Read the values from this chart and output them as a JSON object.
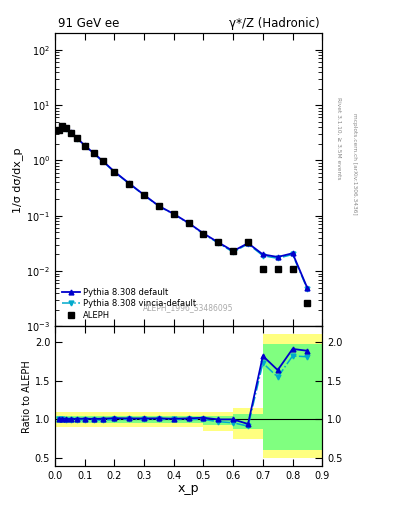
{
  "title_left": "91 GeV ee",
  "title_right": "γ*/Z (Hadronic)",
  "ylabel_main": "1/σ dσ/dx_p",
  "ylabel_ratio": "Ratio to ALEPH",
  "xlabel": "x_p",
  "right_label_top": "Rivet 3.1.10, ≥ 3.5M events",
  "right_label_bottom": "mcplots.cern.ch [arXiv:1306.3436]",
  "watermark": "ALEPH_1996_S3486095",
  "aleph_x": [
    0.012,
    0.025,
    0.038,
    0.055,
    0.075,
    0.1,
    0.13,
    0.16,
    0.2,
    0.25,
    0.3,
    0.35,
    0.4,
    0.45,
    0.5,
    0.55,
    0.6,
    0.65,
    0.7,
    0.75,
    0.8,
    0.85
  ],
  "aleph_y": [
    3.5,
    4.2,
    3.8,
    3.2,
    2.5,
    1.85,
    1.35,
    0.98,
    0.62,
    0.38,
    0.235,
    0.148,
    0.107,
    0.073,
    0.047,
    0.033,
    0.023,
    0.034,
    0.011,
    0.011,
    0.011,
    0.0026
  ],
  "pythia_default_x": [
    0.012,
    0.025,
    0.038,
    0.055,
    0.075,
    0.1,
    0.13,
    0.16,
    0.2,
    0.25,
    0.3,
    0.35,
    0.4,
    0.45,
    0.5,
    0.55,
    0.6,
    0.65,
    0.7,
    0.75,
    0.8,
    0.85
  ],
  "pythia_default_y": [
    3.55,
    4.25,
    3.82,
    3.22,
    2.52,
    1.87,
    1.36,
    0.99,
    0.63,
    0.385,
    0.238,
    0.15,
    0.108,
    0.074,
    0.048,
    0.033,
    0.023,
    0.032,
    0.02,
    0.018,
    0.021,
    0.0049
  ],
  "pythia_vincia_x": [
    0.012,
    0.025,
    0.038,
    0.055,
    0.075,
    0.1,
    0.13,
    0.16,
    0.2,
    0.25,
    0.3,
    0.35,
    0.4,
    0.45,
    0.5,
    0.55,
    0.6,
    0.65,
    0.7,
    0.75,
    0.8,
    0.85
  ],
  "pythia_vincia_y": [
    3.5,
    4.2,
    3.78,
    3.18,
    2.48,
    1.84,
    1.34,
    0.97,
    0.62,
    0.38,
    0.235,
    0.148,
    0.107,
    0.073,
    0.047,
    0.032,
    0.022,
    0.031,
    0.019,
    0.017,
    0.02,
    0.0047
  ],
  "ratio_default_x": [
    0.012,
    0.025,
    0.038,
    0.055,
    0.075,
    0.1,
    0.13,
    0.16,
    0.2,
    0.25,
    0.3,
    0.35,
    0.4,
    0.45,
    0.5,
    0.55,
    0.6,
    0.65,
    0.7,
    0.75,
    0.8,
    0.85
  ],
  "ratio_default_y": [
    1.01,
    1.01,
    1.005,
    1.006,
    1.008,
    1.011,
    1.007,
    1.01,
    1.016,
    1.013,
    1.013,
    1.014,
    1.009,
    1.014,
    1.021,
    1.0,
    1.0,
    0.941,
    1.818,
    1.636,
    1.909,
    1.885
  ],
  "ratio_vincia_x": [
    0.012,
    0.025,
    0.038,
    0.055,
    0.075,
    0.1,
    0.13,
    0.16,
    0.2,
    0.25,
    0.3,
    0.35,
    0.4,
    0.45,
    0.5,
    0.55,
    0.6,
    0.65,
    0.7,
    0.75,
    0.8,
    0.85
  ],
  "ratio_vincia_y": [
    1.0,
    1.0,
    0.995,
    0.994,
    0.992,
    0.995,
    0.993,
    0.99,
    1.0,
    1.0,
    1.0,
    1.0,
    1.0,
    1.0,
    1.0,
    0.97,
    0.957,
    0.912,
    1.727,
    1.545,
    1.818,
    1.808
  ],
  "band_yellow_edges": [
    0.0,
    0.1,
    0.2,
    0.3,
    0.4,
    0.5,
    0.6,
    0.7,
    0.8,
    0.9
  ],
  "band_yellow_lo": [
    0.9,
    0.9,
    0.9,
    0.9,
    0.9,
    0.85,
    0.75,
    0.5,
    0.5,
    0.5
  ],
  "band_yellow_hi": [
    1.1,
    1.1,
    1.1,
    1.1,
    1.1,
    1.1,
    1.15,
    2.1,
    2.1,
    2.1
  ],
  "band_green_edges": [
    0.0,
    0.1,
    0.2,
    0.3,
    0.4,
    0.5,
    0.6,
    0.7,
    0.8,
    0.9
  ],
  "band_green_lo": [
    0.95,
    0.95,
    0.95,
    0.95,
    0.95,
    0.93,
    0.88,
    0.6,
    0.6,
    0.6
  ],
  "band_green_hi": [
    1.05,
    1.05,
    1.05,
    1.05,
    1.05,
    1.05,
    1.07,
    1.97,
    1.97,
    1.97
  ],
  "color_aleph": "#000000",
  "color_pythia_default": "#0000cc",
  "color_pythia_vincia": "#00aacc",
  "color_yellow": "#ffff80",
  "color_green": "#80ff80",
  "xlim": [
    0.0,
    0.9
  ],
  "ylim_main": [
    0.001,
    200.0
  ],
  "ylim_ratio": [
    0.4,
    2.2
  ],
  "ratio_yticks": [
    0.5,
    1.0,
    1.5,
    2.0
  ]
}
